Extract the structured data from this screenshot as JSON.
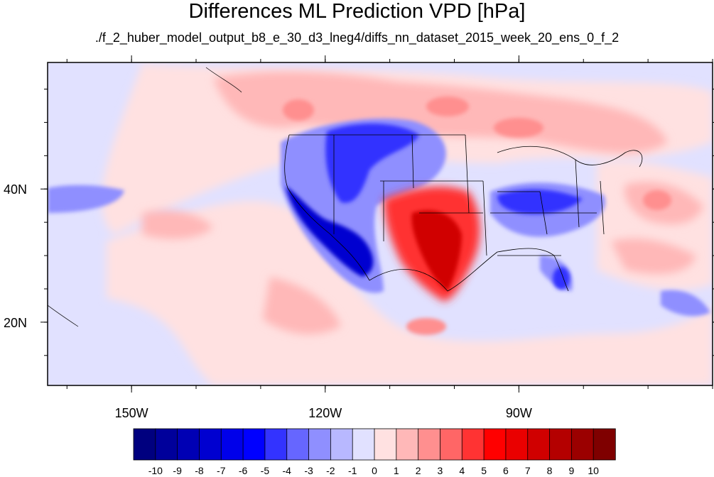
{
  "title": "Differences ML Prediction VPD [hPa]",
  "subtitle": "./f_2_huber_model_output_b8_e_30_d3_lneg4/diffs_nn_dataset_2015_week_20_ens_0_f_2",
  "map": {
    "lon_range": [
      -163,
      -60
    ],
    "lat_range": [
      10.5,
      59
    ],
    "lon_ticks": [
      {
        "value": -150,
        "label": "150W"
      },
      {
        "value": -120,
        "label": "120W"
      },
      {
        "value": -90,
        "label": "90W"
      }
    ],
    "lat_ticks": [
      {
        "value": 40,
        "label": "40N"
      },
      {
        "value": 20,
        "label": "20N"
      }
    ],
    "minor_lon_step": 10,
    "minor_lat_step": 5
  },
  "colorbar": {
    "levels": [
      "-10",
      "-9",
      "-8",
      "-7",
      "-6",
      "-5",
      "-4",
      "-3",
      "-2",
      "-1",
      "0",
      "1",
      "2",
      "3",
      "4",
      "5",
      "6",
      "7",
      "8",
      "9",
      "10"
    ],
    "colors": [
      "#00007f",
      "#00009b",
      "#0000b4",
      "#0000d0",
      "#0000ea",
      "#0000ff",
      "#3333ff",
      "#6666ff",
      "#8f8fff",
      "#b8b8ff",
      "#e1e1ff",
      "#ffe1e1",
      "#ffb8b8",
      "#ff8f8f",
      "#ff6666",
      "#ff3333",
      "#ff0000",
      "#ea0000",
      "#d00000",
      "#b40000",
      "#9b0000",
      "#7f0000"
    ]
  },
  "regions": [
    {
      "name": "background",
      "color": "#e1e1ff"
    },
    {
      "name": "pacific-light-red-band",
      "color": "#ffe1e1"
    },
    {
      "name": "canada-red",
      "color": "#ffb8b8"
    },
    {
      "name": "canada-red-core",
      "color": "#ff8f8f"
    },
    {
      "name": "west-blue",
      "color": "#8f8fff"
    },
    {
      "name": "west-blue-core",
      "color": "#3333ff"
    },
    {
      "name": "california-deep-blue",
      "color": "#0000d0"
    },
    {
      "name": "southern-plains-red",
      "color": "#ff3333"
    },
    {
      "name": "texas-deep-red",
      "color": "#d00000"
    },
    {
      "name": "east-blue",
      "color": "#6666ff"
    },
    {
      "name": "gulf-light-red",
      "color": "#ffb8b8"
    }
  ]
}
